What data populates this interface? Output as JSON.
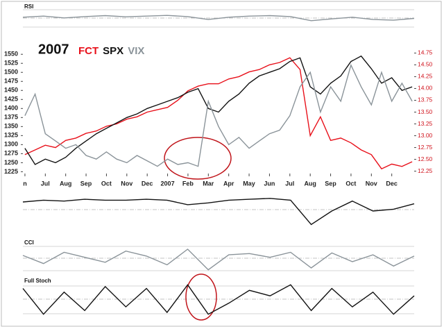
{
  "chart_data": [
    {
      "type": "line",
      "title": "RSI",
      "x": [
        0,
        1,
        2,
        3,
        4,
        5,
        6,
        7,
        8,
        9,
        10,
        11,
        12,
        13,
        14,
        15,
        16,
        17,
        18,
        19
      ],
      "xlim": [
        0,
        19
      ],
      "ylim": [
        0,
        100
      ],
      "series": [
        {
          "color": "#8a9399",
          "values": [
            55,
            60,
            52,
            58,
            62,
            57,
            60,
            63,
            58,
            45,
            55,
            60,
            62,
            58,
            40,
            48,
            55,
            45,
            42,
            50
          ]
        }
      ]
    },
    {
      "type": "line",
      "title": "2007",
      "x": [
        0,
        0.5,
        1,
        1.5,
        2,
        2.5,
        3,
        3.5,
        4,
        4.5,
        5,
        5.5,
        6,
        6.5,
        7,
        7.5,
        8,
        8.5,
        9,
        9.5,
        10,
        10.5,
        11,
        11.5,
        12,
        12.5,
        13,
        13.5,
        14,
        14.5,
        15,
        15.5,
        16,
        16.5,
        17,
        17.5,
        18,
        18.5,
        19
      ],
      "xlim": [
        -0.1,
        19.1
      ],
      "xticks": [
        {
          "value": 0,
          "label": "n"
        },
        {
          "value": 1,
          "label": "Jul"
        },
        {
          "value": 2,
          "label": "Aug"
        },
        {
          "value": 3,
          "label": "Sep"
        },
        {
          "value": 4,
          "label": "Oct"
        },
        {
          "value": 5,
          "label": "Nov"
        },
        {
          "value": 6,
          "label": "Dec"
        },
        {
          "value": 7,
          "label": "2007"
        },
        {
          "value": 8,
          "label": "Feb"
        },
        {
          "value": 9,
          "label": "Mar"
        },
        {
          "value": 10,
          "label": "Apr"
        },
        {
          "value": 11,
          "label": "May"
        },
        {
          "value": 12,
          "label": "Jun"
        },
        {
          "value": 13,
          "label": "Jul"
        },
        {
          "value": 14,
          "label": "Aug"
        },
        {
          "value": 15,
          "label": "Sep"
        },
        {
          "value": 16,
          "label": "Oct"
        },
        {
          "value": 17,
          "label": "Nov"
        },
        {
          "value": 18,
          "label": "Dec"
        }
      ],
      "ylim": [
        1220,
        1560
      ],
      "yticks": [
        1225,
        1250,
        1275,
        1300,
        1325,
        1350,
        1375,
        1400,
        1425,
        1450,
        1475,
        1500,
        1525,
        1550
      ],
      "y2lim": [
        12.2,
        14.8
      ],
      "y2ticks": [
        {
          "value": 12.25,
          "label": "12.25"
        },
        {
          "value": 12.5,
          "label": "12.50"
        },
        {
          "value": 12.75,
          "label": "12.75"
        },
        {
          "value": 13,
          "label": "13.00"
        },
        {
          "value": 13.25,
          "label": "13.25"
        },
        {
          "value": 13.5,
          "label": "13.50"
        },
        {
          "value": 13.75,
          "label": "13.75"
        },
        {
          "value": 14,
          "label": "14.00"
        },
        {
          "value": 14.25,
          "label": "14.25"
        },
        {
          "value": 14.5,
          "label": "14.50"
        },
        {
          "value": 14.75,
          "label": "14.75"
        }
      ],
      "series": [
        {
          "name": "FCT",
          "color": "#e8101a",
          "axis": "y2",
          "values": [
            12.6,
            12.7,
            12.8,
            12.75,
            12.9,
            12.95,
            13.05,
            13.1,
            13.2,
            13.25,
            13.35,
            13.4,
            13.5,
            13.55,
            13.6,
            13.75,
            13.95,
            14.05,
            14.1,
            14.1,
            14.2,
            14.25,
            14.35,
            14.4,
            14.5,
            14.55,
            14.65,
            14.4,
            13.0,
            13.4,
            12.9,
            12.95,
            12.85,
            12.7,
            12.6,
            12.3,
            12.4,
            12.35,
            12.45
          ]
        },
        {
          "name": "SPX",
          "color": "#111111",
          "values": [
            1290,
            1245,
            1260,
            1250,
            1265,
            1290,
            1310,
            1330,
            1345,
            1360,
            1375,
            1385,
            1400,
            1410,
            1420,
            1430,
            1445,
            1455,
            1400,
            1390,
            1420,
            1440,
            1470,
            1490,
            1500,
            1510,
            1530,
            1540,
            1460,
            1440,
            1470,
            1490,
            1530,
            1545,
            1510,
            1470,
            1485,
            1450,
            1460
          ]
        },
        {
          "name": "VIX",
          "color": "#8a9399",
          "values": [
            1380,
            1440,
            1330,
            1310,
            1290,
            1300,
            1270,
            1260,
            1280,
            1260,
            1250,
            1270,
            1255,
            1240,
            1260,
            1245,
            1250,
            1240,
            1420,
            1350,
            1300,
            1320,
            1290,
            1310,
            1330,
            1340,
            1380,
            1460,
            1500,
            1390,
            1460,
            1420,
            1520,
            1460,
            1410,
            1500,
            1420,
            1470,
            1420
          ]
        }
      ]
    },
    {
      "type": "line",
      "x": [
        0,
        1,
        2,
        3,
        4,
        5,
        6,
        7,
        8,
        9,
        10,
        11,
        12,
        13,
        14,
        15,
        16,
        17,
        18,
        19
      ],
      "xlim": [
        0,
        19
      ],
      "ylim": [
        -30,
        10
      ],
      "series": [
        {
          "color": "#111111",
          "values": [
            0,
            2,
            1,
            3,
            2,
            2,
            3,
            2,
            -3,
            -1,
            2,
            3,
            4,
            2,
            -25,
            -10,
            1,
            -10,
            -8,
            -2
          ]
        }
      ]
    },
    {
      "type": "line",
      "title": "CCI",
      "x": [
        0,
        1,
        2,
        3,
        4,
        5,
        6,
        7,
        8,
        9,
        10,
        11,
        12,
        13,
        14,
        15,
        16,
        17,
        18,
        19
      ],
      "xlim": [
        0,
        19
      ],
      "ylim": [
        -250,
        250
      ],
      "series": [
        {
          "color": "#8a9399",
          "values": [
            50,
            -80,
            100,
            20,
            -60,
            120,
            40,
            -100,
            150,
            -180,
            60,
            80,
            20,
            100,
            -150,
            90,
            -50,
            60,
            -120,
            40
          ]
        }
      ]
    },
    {
      "type": "line",
      "title": "Full Stoch",
      "x": [
        0,
        1,
        2,
        3,
        4,
        5,
        6,
        7,
        8,
        9,
        10,
        11,
        12,
        13,
        14,
        15,
        16,
        17,
        18,
        19
      ],
      "xlim": [
        0,
        19
      ],
      "ylim": [
        0,
        100
      ],
      "series": [
        {
          "color": "#111111",
          "values": [
            80,
            10,
            70,
            20,
            85,
            30,
            80,
            15,
            90,
            10,
            40,
            75,
            60,
            90,
            20,
            80,
            30,
            70,
            10,
            60
          ]
        }
      ]
    }
  ]
}
